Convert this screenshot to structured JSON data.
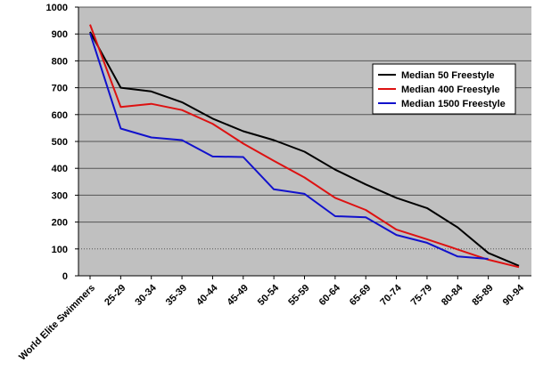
{
  "chart_data": {
    "type": "line",
    "categories": [
      "World Elite Swimmers",
      "25-29",
      "30-34",
      "35-39",
      "40-44",
      "45-49",
      "50-54",
      "55-59",
      "60-64",
      "65-69",
      "70-74",
      "75-79",
      "80-84",
      "85-89",
      "90-94"
    ],
    "series": [
      {
        "name": "Median 50 Freestyle",
        "color": "#000000",
        "values": [
          908,
          700,
          686,
          646,
          585,
          538,
          505,
          462,
          395,
          340,
          290,
          252,
          180,
          85,
          37
        ]
      },
      {
        "name": "Median 400 Freestyle",
        "color": "#dd1111",
        "values": [
          935,
          628,
          640,
          617,
          566,
          492,
          428,
          366,
          290,
          245,
          172,
          136,
          98,
          60,
          32
        ]
      },
      {
        "name": "Median 1500 Freestyle",
        "color": "#1111cc",
        "values": [
          903,
          548,
          515,
          505,
          444,
          442,
          322,
          305,
          222,
          218,
          152,
          123,
          72,
          63,
          null
        ]
      }
    ],
    "yticks": [
      "0",
      "100",
      "200",
      "300",
      "400",
      "500",
      "600",
      "700",
      "800",
      "900",
      "1000"
    ],
    "ylim": [
      0,
      1000
    ],
    "grid": true,
    "legend_position": "right"
  }
}
